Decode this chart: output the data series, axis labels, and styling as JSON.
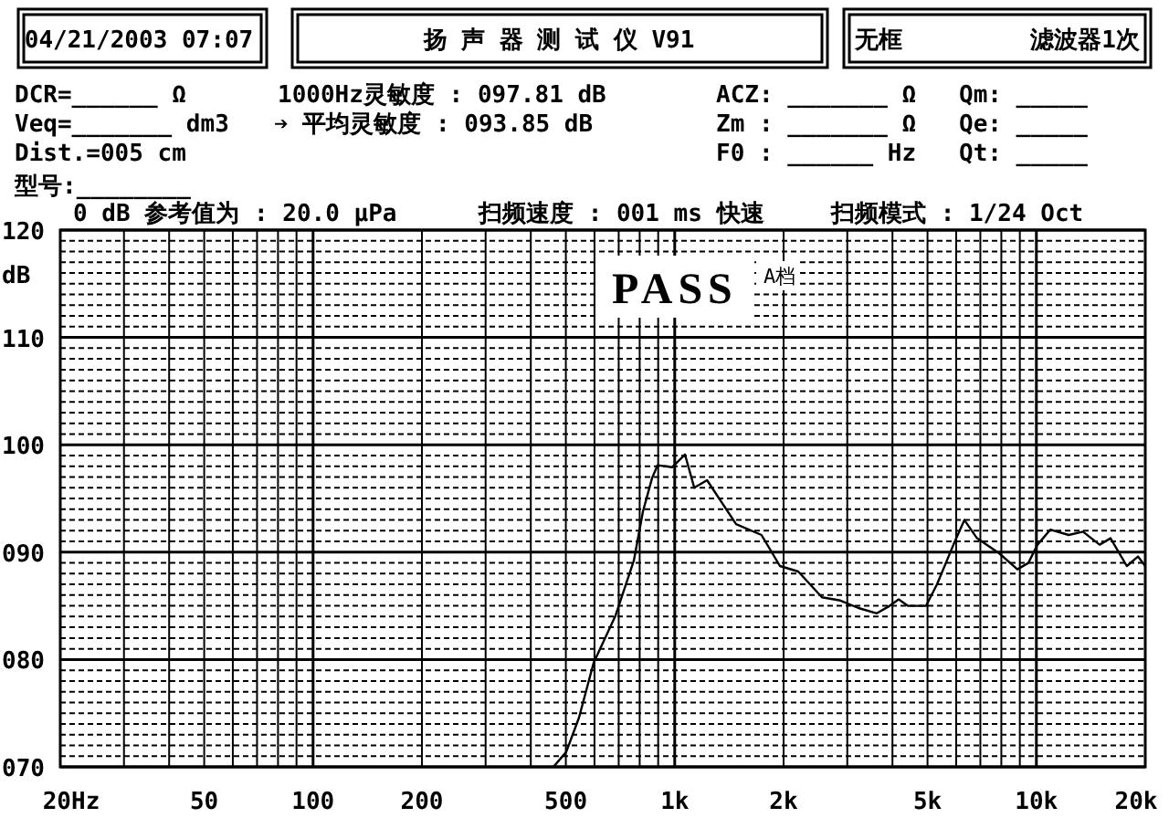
{
  "chart_data": {
    "type": "line",
    "title": "扬 声 器 测 试 仪 V91",
    "ylabel": "dB",
    "annotations": [
      "04/21/2003 07:07",
      "无框",
      "滤波器1次",
      "DCR=______ Ω",
      "1000Hz灵敏度 : 097.81 dB",
      "ACZ: _______ Ω",
      "Qm: _____",
      "Veq=_______ dm3",
      "➔ 平均灵敏度 : 093.85 dB",
      "Zm : _______ Ω",
      "Qe: _____",
      "Dist.=005 cm",
      "F0 : ______ Hz",
      "Qt: _____",
      "型号:________",
      "0 dB 参考值为 : 20.0 μPa",
      "扫频速度 : 001 ms 快速",
      "扫频模式 : 1/24 Oct",
      "PASS",
      "A档"
    ],
    "log": "x",
    "grid": true,
    "xlim": [
      20,
      20000
    ],
    "ylim": [
      70,
      120
    ],
    "xticks": [
      {
        "value": 20,
        "label": "20Hz"
      },
      50,
      100,
      200,
      500,
      {
        "value": 1000,
        "label": "1k"
      },
      {
        "value": 2000,
        "label": "2k"
      },
      {
        "value": 5000,
        "label": "5k"
      },
      {
        "value": 10000,
        "label": "10k"
      },
      {
        "value": 20000,
        "label": "20k"
      }
    ],
    "yticks": [
      {
        "value": 70,
        "label": "070"
      },
      {
        "value": 80,
        "label": "080"
      },
      {
        "value": 90,
        "label": "090"
      },
      100,
      110,
      120
    ],
    "series": [
      {
        "color": "#000000",
        "x": [
          462,
          501,
          544,
          597,
          686,
          771,
          817,
          866,
          897,
          984,
          1067,
          1132,
          1228,
          1478,
          1738,
          1954,
          2194,
          2553,
          2870,
          3220,
          3620,
          3929,
          4160,
          4410,
          4955,
          5310,
          5900,
          6325,
          6855,
          7890,
          8860,
          9500,
          10070,
          10920,
          12280,
          13460,
          14960,
          16030,
          17790,
          19090,
          20000
        ],
        "values": [
          70,
          71.4,
          74.6,
          79.7,
          84.1,
          89.2,
          93.8,
          96.9,
          98.1,
          97.9,
          99.1,
          96.0,
          96.7,
          92.6,
          91.6,
          88.7,
          88.2,
          85.8,
          85.5,
          84.8,
          84.3,
          85.0,
          85.6,
          85.0,
          85.0,
          87.0,
          90.7,
          93.0,
          91.3,
          89.9,
          88.4,
          89.0,
          90.7,
          92.1,
          91.6,
          91.9,
          90.7,
          91.3,
          88.7,
          89.6,
          88.7
        ]
      }
    ]
  }
}
